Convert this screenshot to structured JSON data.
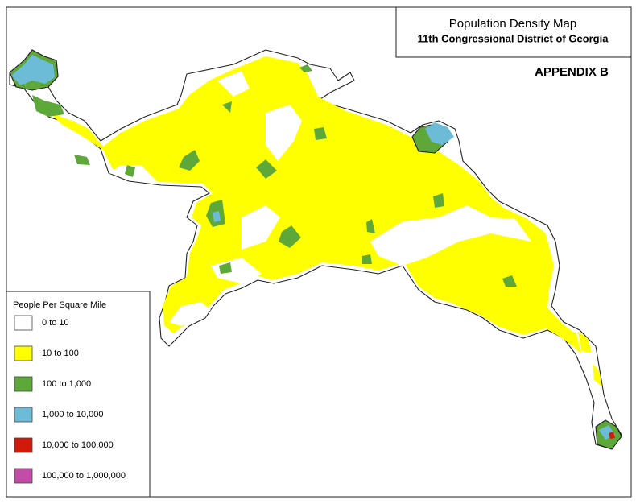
{
  "header": {
    "title": "Population Density Map",
    "subtitle": "11th Congressional District of Georgia",
    "label": "APPENDIX B"
  },
  "legend": {
    "title": "People Per Square Mile",
    "entries": [
      {
        "label": "0 to 10",
        "color": "#ffffff"
      },
      {
        "label": "10 to 100",
        "color": "#ffff00"
      },
      {
        "label": "100 to 1,000",
        "color": "#5ea83a"
      },
      {
        "label": "1,000 to 10,000",
        "color": "#6cbcd8"
      },
      {
        "label": "10,000 to 100,000",
        "color": "#d21a0a"
      },
      {
        "label": "100,000 to 1,000,000",
        "color": "#c24ca6"
      }
    ]
  }
}
